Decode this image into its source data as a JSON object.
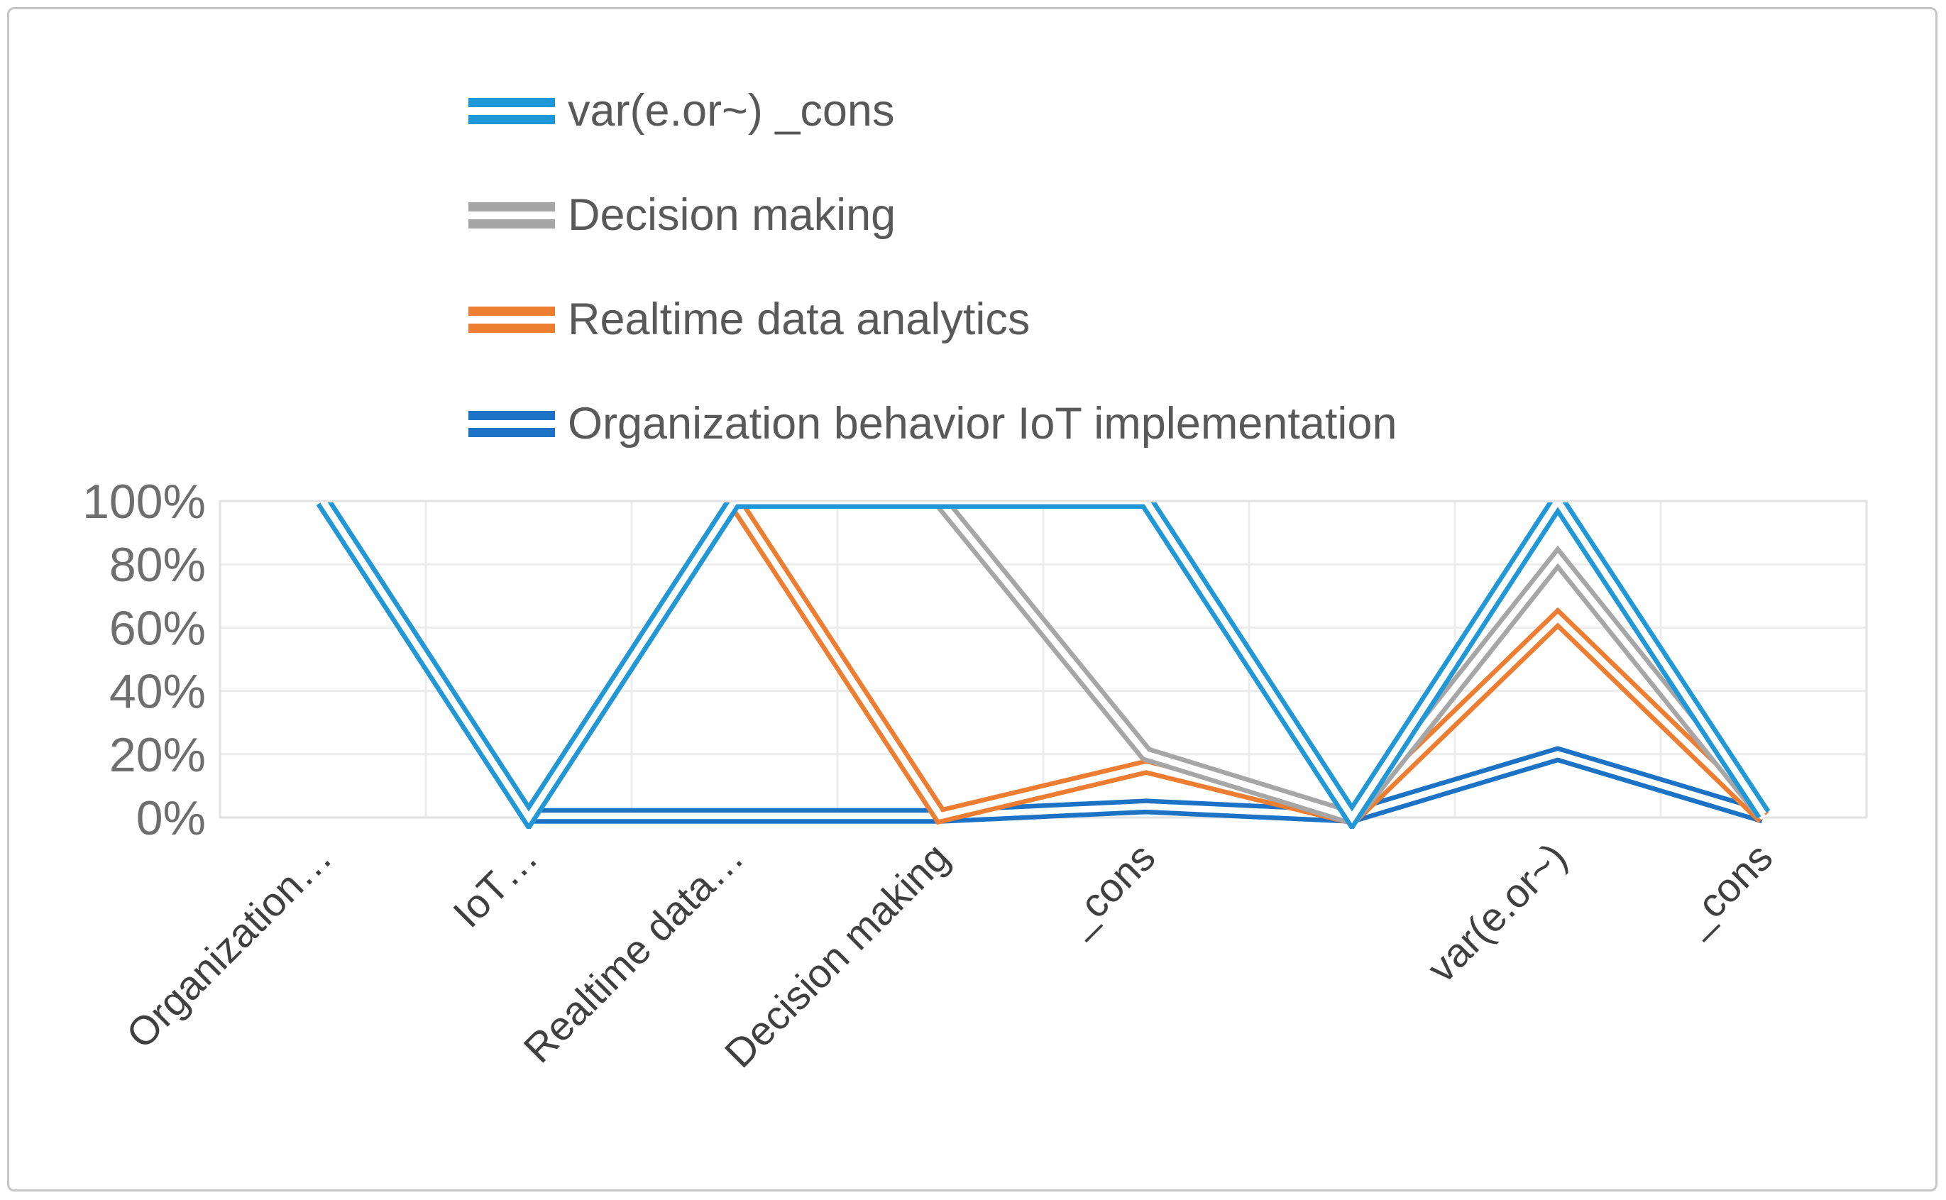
{
  "chart_data": {
    "type": "line",
    "line_style": "double",
    "title": "",
    "xlabel": "",
    "ylabel": "",
    "ylim": [
      0,
      100
    ],
    "grid": true,
    "legend_position": "top-left",
    "y_ticks": [
      "100%",
      "80%",
      "60%",
      "40%",
      "20%",
      "0%"
    ],
    "categories": [
      "Organization…",
      "IoT…",
      "Realtime data…",
      "Decision making",
      "_cons",
      "",
      "var(e.or~)",
      "_cons"
    ],
    "series": [
      {
        "name": "var(e.or~) _cons",
        "color": "#2097d6",
        "values": [
          100,
          0,
          100,
          100,
          100,
          0,
          100,
          1
        ]
      },
      {
        "name": "Decision making",
        "color": "#a6a6a6",
        "values": [
          100,
          0,
          100,
          100,
          20,
          0,
          82,
          1
        ]
      },
      {
        "name": "Realtime data analytics",
        "color": "#ed7d31",
        "values": [
          100,
          0,
          100,
          0.5,
          16,
          0,
          63,
          0
        ]
      },
      {
        "name": "Organization behavior IoT implementation",
        "color": "#1c72c4",
        "values": [
          null,
          0.5,
          0.5,
          0.5,
          3.5,
          0.5,
          20,
          0.5
        ]
      }
    ]
  }
}
